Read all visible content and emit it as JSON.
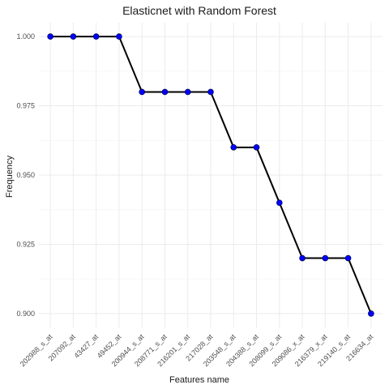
{
  "chart_data": {
    "type": "line",
    "title": "Elasticnet with Random Forest",
    "xlabel": "Features name",
    "ylabel": "Frequency",
    "ylim": [
      0.895,
      1.005
    ],
    "yticks": [
      "0.900",
      "0.925",
      "0.950",
      "0.975",
      "1.000"
    ],
    "categories": [
      "202988_s_at",
      "207092_at",
      "43427_at",
      "49452_at",
      "200944_s_at",
      "208771_s_at",
      "216201_s_at",
      "217028_at",
      "203548_s_at",
      "204388_s_at",
      "208099_s_at",
      "209086_x_at",
      "216379_x_at",
      "219140_s_at",
      "216634_at"
    ],
    "values": [
      1.0,
      1.0,
      1.0,
      1.0,
      0.98,
      0.98,
      0.98,
      0.98,
      0.96,
      0.96,
      0.94,
      0.92,
      0.92,
      0.92,
      0.9
    ],
    "grid": true,
    "colors": {
      "line": "#000000",
      "point": "#0000ff",
      "grid": "#ebebeb"
    }
  }
}
